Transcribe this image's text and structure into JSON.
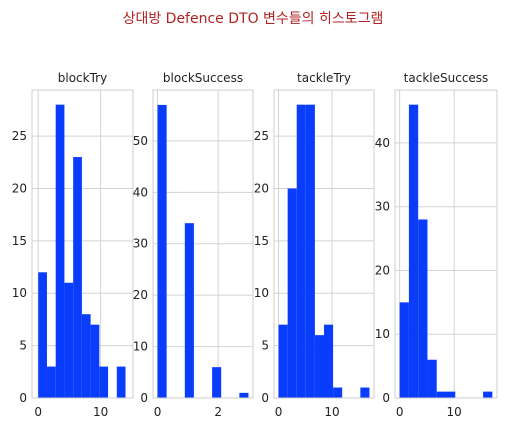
{
  "chart_data": {
    "type": "histogram",
    "title": "상대방 Defence DTO 변수들의 히스토그램",
    "color": "#0a3dfb",
    "grid": true,
    "panels": [
      {
        "title": "blockTry",
        "xlim": [
          -1,
          15.2
        ],
        "ylim": [
          0,
          29.4
        ],
        "xticks": [
          0,
          10
        ],
        "yticks": [
          0,
          5,
          10,
          15,
          20,
          25
        ],
        "bins": [
          {
            "x0": 0.0,
            "x1": 1.4,
            "count": 12
          },
          {
            "x0": 1.4,
            "x1": 2.8,
            "count": 3
          },
          {
            "x0": 2.8,
            "x1": 4.2,
            "count": 28
          },
          {
            "x0": 4.2,
            "x1": 5.6,
            "count": 11
          },
          {
            "x0": 5.6,
            "x1": 7.0,
            "count": 23
          },
          {
            "x0": 7.0,
            "x1": 8.4,
            "count": 8
          },
          {
            "x0": 8.4,
            "x1": 9.8,
            "count": 7
          },
          {
            "x0": 9.8,
            "x1": 11.2,
            "count": 3
          },
          {
            "x0": 11.2,
            "x1": 12.6,
            "count": 0
          },
          {
            "x0": 12.6,
            "x1": 14.0,
            "count": 3
          }
        ]
      },
      {
        "title": "blockSuccess",
        "xlim": [
          -0.15,
          3.15
        ],
        "ylim": [
          0,
          59.9
        ],
        "xticks": [
          0,
          2
        ],
        "yticks": [
          0,
          10,
          20,
          30,
          40,
          50
        ],
        "bins": [
          {
            "x0": 0.0,
            "x1": 0.3,
            "count": 57
          },
          {
            "x0": 0.3,
            "x1": 0.6,
            "count": 0
          },
          {
            "x0": 0.6,
            "x1": 0.9,
            "count": 0
          },
          {
            "x0": 0.9,
            "x1": 1.2,
            "count": 34
          },
          {
            "x0": 1.2,
            "x1": 1.5,
            "count": 0
          },
          {
            "x0": 1.5,
            "x1": 1.8,
            "count": 0
          },
          {
            "x0": 1.8,
            "x1": 2.1,
            "count": 6
          },
          {
            "x0": 2.1,
            "x1": 2.4,
            "count": 0
          },
          {
            "x0": 2.4,
            "x1": 2.7,
            "count": 0
          },
          {
            "x0": 2.7,
            "x1": 3.0,
            "count": 1
          }
        ]
      },
      {
        "title": "tackleTry",
        "xlim": [
          -0.85,
          17.85
        ],
        "ylim": [
          0,
          29.4
        ],
        "xticks": [
          0,
          10
        ],
        "yticks": [
          0,
          5,
          10,
          15,
          20,
          25
        ],
        "bins": [
          {
            "x0": 0.0,
            "x1": 1.7,
            "count": 7
          },
          {
            "x0": 1.7,
            "x1": 3.4,
            "count": 20
          },
          {
            "x0": 3.4,
            "x1": 5.1,
            "count": 28
          },
          {
            "x0": 5.1,
            "x1": 6.8,
            "count": 28
          },
          {
            "x0": 6.8,
            "x1": 8.5,
            "count": 6
          },
          {
            "x0": 8.5,
            "x1": 10.2,
            "count": 7
          },
          {
            "x0": 10.2,
            "x1": 11.9,
            "count": 1
          },
          {
            "x0": 11.9,
            "x1": 13.6,
            "count": 0
          },
          {
            "x0": 13.6,
            "x1": 15.3,
            "count": 0
          },
          {
            "x0": 15.3,
            "x1": 17.0,
            "count": 1
          }
        ]
      },
      {
        "title": "tackleSuccess",
        "xlim": [
          -0.85,
          17.85
        ],
        "ylim": [
          0,
          48.3
        ],
        "xticks": [
          0,
          10
        ],
        "yticks": [
          0,
          10,
          20,
          30,
          40
        ],
        "bins": [
          {
            "x0": 0.0,
            "x1": 1.7,
            "count": 15
          },
          {
            "x0": 1.7,
            "x1": 3.4,
            "count": 46
          },
          {
            "x0": 3.4,
            "x1": 5.1,
            "count": 28
          },
          {
            "x0": 5.1,
            "x1": 6.8,
            "count": 6
          },
          {
            "x0": 6.8,
            "x1": 8.5,
            "count": 1
          },
          {
            "x0": 8.5,
            "x1": 10.2,
            "count": 1
          },
          {
            "x0": 10.2,
            "x1": 11.9,
            "count": 0
          },
          {
            "x0": 11.9,
            "x1": 13.6,
            "count": 0
          },
          {
            "x0": 13.6,
            "x1": 15.3,
            "count": 0
          },
          {
            "x0": 15.3,
            "x1": 17.0,
            "count": 1
          }
        ]
      }
    ]
  }
}
